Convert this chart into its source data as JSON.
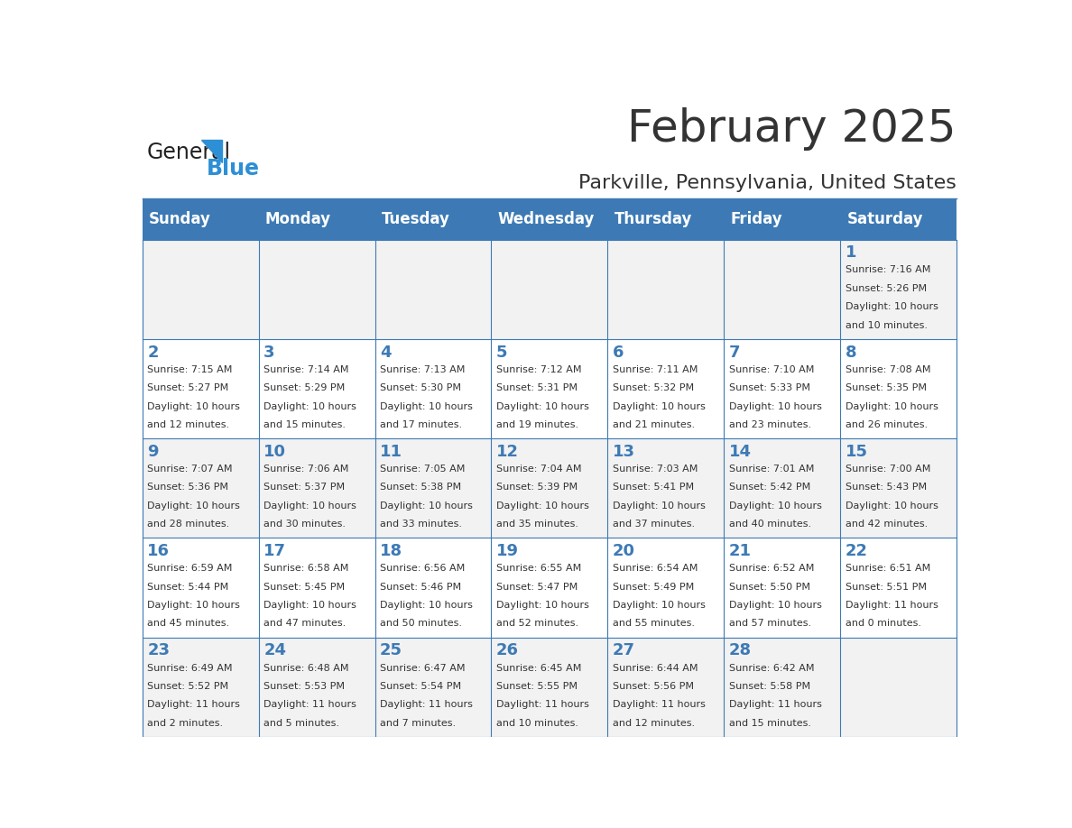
{
  "title": "February 2025",
  "subtitle": "Parkville, Pennsylvania, United States",
  "header_color": "#3d7ab5",
  "header_text_color": "#ffffff",
  "day_names": [
    "Sunday",
    "Monday",
    "Tuesday",
    "Wednesday",
    "Thursday",
    "Friday",
    "Saturday"
  ],
  "background_color": "#ffffff",
  "cell_bg_even": "#f2f2f2",
  "cell_bg_odd": "#ffffff",
  "grid_color": "#3d7ab5",
  "day_number_color": "#3d7ab5",
  "text_color": "#333333",
  "logo_general_color": "#222222",
  "logo_blue_color": "#2d8fd5",
  "days": [
    {
      "date": 1,
      "col": 6,
      "row": 0,
      "sunrise": "7:16 AM",
      "sunset": "5:26 PM",
      "daylight": "10 hours and 10 minutes."
    },
    {
      "date": 2,
      "col": 0,
      "row": 1,
      "sunrise": "7:15 AM",
      "sunset": "5:27 PM",
      "daylight": "10 hours and 12 minutes."
    },
    {
      "date": 3,
      "col": 1,
      "row": 1,
      "sunrise": "7:14 AM",
      "sunset": "5:29 PM",
      "daylight": "10 hours and 15 minutes."
    },
    {
      "date": 4,
      "col": 2,
      "row": 1,
      "sunrise": "7:13 AM",
      "sunset": "5:30 PM",
      "daylight": "10 hours and 17 minutes."
    },
    {
      "date": 5,
      "col": 3,
      "row": 1,
      "sunrise": "7:12 AM",
      "sunset": "5:31 PM",
      "daylight": "10 hours and 19 minutes."
    },
    {
      "date": 6,
      "col": 4,
      "row": 1,
      "sunrise": "7:11 AM",
      "sunset": "5:32 PM",
      "daylight": "10 hours and 21 minutes."
    },
    {
      "date": 7,
      "col": 5,
      "row": 1,
      "sunrise": "7:10 AM",
      "sunset": "5:33 PM",
      "daylight": "10 hours and 23 minutes."
    },
    {
      "date": 8,
      "col": 6,
      "row": 1,
      "sunrise": "7:08 AM",
      "sunset": "5:35 PM",
      "daylight": "10 hours and 26 minutes."
    },
    {
      "date": 9,
      "col": 0,
      "row": 2,
      "sunrise": "7:07 AM",
      "sunset": "5:36 PM",
      "daylight": "10 hours and 28 minutes."
    },
    {
      "date": 10,
      "col": 1,
      "row": 2,
      "sunrise": "7:06 AM",
      "sunset": "5:37 PM",
      "daylight": "10 hours and 30 minutes."
    },
    {
      "date": 11,
      "col": 2,
      "row": 2,
      "sunrise": "7:05 AM",
      "sunset": "5:38 PM",
      "daylight": "10 hours and 33 minutes."
    },
    {
      "date": 12,
      "col": 3,
      "row": 2,
      "sunrise": "7:04 AM",
      "sunset": "5:39 PM",
      "daylight": "10 hours and 35 minutes."
    },
    {
      "date": 13,
      "col": 4,
      "row": 2,
      "sunrise": "7:03 AM",
      "sunset": "5:41 PM",
      "daylight": "10 hours and 37 minutes."
    },
    {
      "date": 14,
      "col": 5,
      "row": 2,
      "sunrise": "7:01 AM",
      "sunset": "5:42 PM",
      "daylight": "10 hours and 40 minutes."
    },
    {
      "date": 15,
      "col": 6,
      "row": 2,
      "sunrise": "7:00 AM",
      "sunset": "5:43 PM",
      "daylight": "10 hours and 42 minutes."
    },
    {
      "date": 16,
      "col": 0,
      "row": 3,
      "sunrise": "6:59 AM",
      "sunset": "5:44 PM",
      "daylight": "10 hours and 45 minutes."
    },
    {
      "date": 17,
      "col": 1,
      "row": 3,
      "sunrise": "6:58 AM",
      "sunset": "5:45 PM",
      "daylight": "10 hours and 47 minutes."
    },
    {
      "date": 18,
      "col": 2,
      "row": 3,
      "sunrise": "6:56 AM",
      "sunset": "5:46 PM",
      "daylight": "10 hours and 50 minutes."
    },
    {
      "date": 19,
      "col": 3,
      "row": 3,
      "sunrise": "6:55 AM",
      "sunset": "5:47 PM",
      "daylight": "10 hours and 52 minutes."
    },
    {
      "date": 20,
      "col": 4,
      "row": 3,
      "sunrise": "6:54 AM",
      "sunset": "5:49 PM",
      "daylight": "10 hours and 55 minutes."
    },
    {
      "date": 21,
      "col": 5,
      "row": 3,
      "sunrise": "6:52 AM",
      "sunset": "5:50 PM",
      "daylight": "10 hours and 57 minutes."
    },
    {
      "date": 22,
      "col": 6,
      "row": 3,
      "sunrise": "6:51 AM",
      "sunset": "5:51 PM",
      "daylight": "11 hours and 0 minutes."
    },
    {
      "date": 23,
      "col": 0,
      "row": 4,
      "sunrise": "6:49 AM",
      "sunset": "5:52 PM",
      "daylight": "11 hours and 2 minutes."
    },
    {
      "date": 24,
      "col": 1,
      "row": 4,
      "sunrise": "6:48 AM",
      "sunset": "5:53 PM",
      "daylight": "11 hours and 5 minutes."
    },
    {
      "date": 25,
      "col": 2,
      "row": 4,
      "sunrise": "6:47 AM",
      "sunset": "5:54 PM",
      "daylight": "11 hours and 7 minutes."
    },
    {
      "date": 26,
      "col": 3,
      "row": 4,
      "sunrise": "6:45 AM",
      "sunset": "5:55 PM",
      "daylight": "11 hours and 10 minutes."
    },
    {
      "date": 27,
      "col": 4,
      "row": 4,
      "sunrise": "6:44 AM",
      "sunset": "5:56 PM",
      "daylight": "11 hours and 12 minutes."
    },
    {
      "date": 28,
      "col": 5,
      "row": 4,
      "sunrise": "6:42 AM",
      "sunset": "5:58 PM",
      "daylight": "11 hours and 15 minutes."
    }
  ]
}
